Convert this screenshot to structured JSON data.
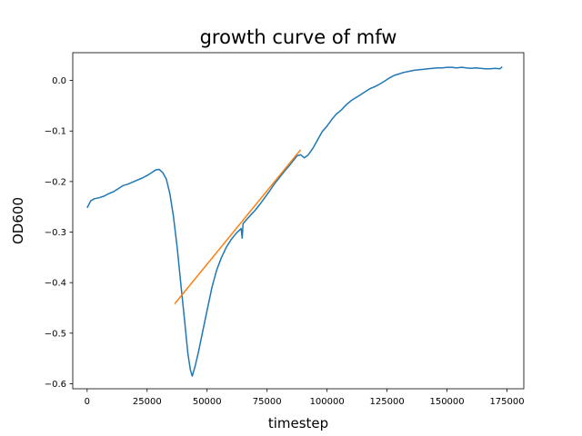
{
  "chart_data": {
    "type": "line",
    "title": "growth curve of mfw",
    "xlabel": "timestep",
    "ylabel": "OD600",
    "xlim": [
      -6000,
      182000
    ],
    "ylim": [
      -0.61,
      0.055
    ],
    "x_ticks": [
      0,
      25000,
      50000,
      75000,
      100000,
      125000,
      150000,
      175000
    ],
    "x_tick_labels": [
      "0",
      "25000",
      "50000",
      "75000",
      "100000",
      "125000",
      "150000",
      "175000"
    ],
    "y_ticks": [
      0.0,
      -0.1,
      -0.2,
      -0.3,
      -0.4,
      -0.5,
      -0.6
    ],
    "y_tick_labels": [
      "0.0",
      "−0.1",
      "−0.2",
      "−0.3",
      "−0.4",
      "−0.5",
      "−0.6"
    ],
    "grid": false,
    "series": [
      {
        "color": "#1f77b4",
        "x": [
          0,
          1500,
          3000,
          5000,
          7000,
          9000,
          11000,
          13000,
          15000,
          17000,
          19000,
          21000,
          23000,
          25000,
          27000,
          28500,
          30000,
          31500,
          33000,
          34500,
          36000,
          37500,
          39000,
          40500,
          42000,
          43000,
          43800,
          45000,
          46500,
          48000,
          50000,
          52000,
          54000,
          56000,
          58000,
          60000,
          62000,
          63500,
          64200,
          64600,
          65000,
          66500,
          68000,
          70000,
          72000,
          74000,
          76000,
          78000,
          80000,
          82000,
          84000,
          86000,
          87500,
          89000,
          90500,
          92000,
          94000,
          96000,
          98000,
          100000,
          102000,
          104000,
          106000,
          108000,
          110000,
          112000,
          114000,
          116000,
          118000,
          120000,
          122000,
          124000,
          126000,
          128000,
          130000,
          132000,
          134000,
          136000,
          138000,
          140000,
          142000,
          144000,
          146000,
          148000,
          150000,
          152000,
          154000,
          156000,
          158000,
          160000,
          162000,
          164000,
          166000,
          168000,
          170000,
          172000,
          173000
        ],
        "y": [
          -0.252,
          -0.238,
          -0.234,
          -0.232,
          -0.229,
          -0.224,
          -0.22,
          -0.214,
          -0.208,
          -0.205,
          -0.201,
          -0.197,
          -0.193,
          -0.188,
          -0.182,
          -0.177,
          -0.176,
          -0.182,
          -0.195,
          -0.225,
          -0.27,
          -0.33,
          -0.4,
          -0.47,
          -0.54,
          -0.572,
          -0.585,
          -0.565,
          -0.535,
          -0.5,
          -0.455,
          -0.41,
          -0.375,
          -0.35,
          -0.33,
          -0.315,
          -0.303,
          -0.296,
          -0.293,
          -0.312,
          -0.283,
          -0.275,
          -0.267,
          -0.257,
          -0.245,
          -0.232,
          -0.219,
          -0.205,
          -0.193,
          -0.181,
          -0.17,
          -0.158,
          -0.149,
          -0.147,
          -0.153,
          -0.148,
          -0.135,
          -0.118,
          -0.101,
          -0.09,
          -0.077,
          -0.066,
          -0.058,
          -0.048,
          -0.04,
          -0.034,
          -0.028,
          -0.022,
          -0.016,
          -0.012,
          -0.007,
          -0.001,
          0.005,
          0.01,
          0.013,
          0.016,
          0.018,
          0.02,
          0.021,
          0.022,
          0.023,
          0.024,
          0.025,
          0.025,
          0.026,
          0.026,
          0.025,
          0.026,
          0.025,
          0.024,
          0.025,
          0.024,
          0.023,
          0.023,
          0.024,
          0.023,
          0.027
        ]
      },
      {
        "color": "#ff7f0e",
        "x": [
          36500,
          89000
        ],
        "y": [
          -0.442,
          -0.137
        ]
      }
    ]
  }
}
